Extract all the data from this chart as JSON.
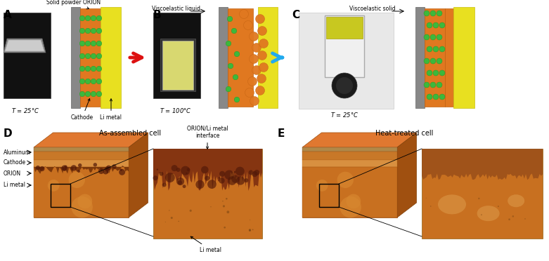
{
  "panel_labels": [
    "A",
    "B",
    "C",
    "D",
    "E"
  ],
  "panel_A": {
    "title": "Solid powder ORION",
    "temp": "T = 25°C",
    "labels": [
      "Cathode",
      "Li metal"
    ]
  },
  "panel_B": {
    "title": "Viscoelastic liquid",
    "temp": "T = 100°C"
  },
  "panel_C": {
    "title": "Viscoelastic solid",
    "temp": "T = 25°C"
  },
  "panel_D": {
    "title": "As-assembled cell",
    "labels": [
      "Aluminum",
      "Cathode",
      "ORION",
      "Li metal"
    ],
    "sublabels": [
      "ORION/Li metal\ninterface",
      "Li metal"
    ]
  },
  "panel_E": {
    "title": "Heat-treated cell"
  },
  "colors": {
    "green_sphere": "#3cb83c",
    "orange_layer": "#e07820",
    "yellow_plate": "#e8e020",
    "gray_bg": "#888888",
    "brown_cell_front": "#c86820",
    "brown_cell_top": "#e07830",
    "brown_cell_right": "#a05010",
    "background": "#ffffff",
    "arrow_red": "#dd1111",
    "arrow_blue": "#22aaee",
    "photo_bg": "#111111",
    "photo_C_bg": "#dddddd"
  },
  "fig_width": 7.81,
  "fig_height": 3.72
}
